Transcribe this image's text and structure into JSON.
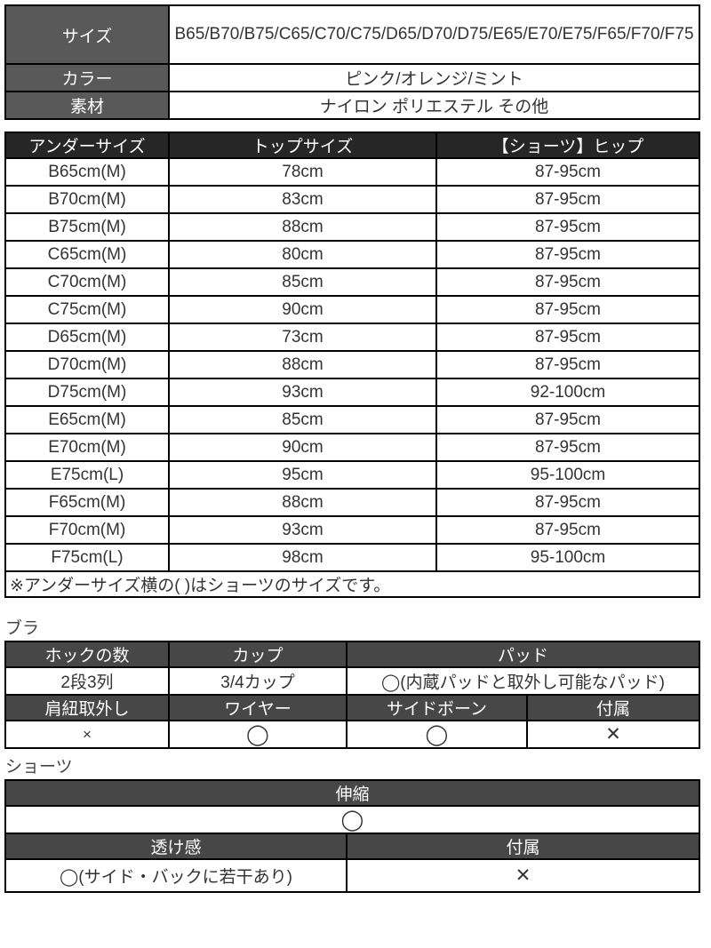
{
  "colors": {
    "header_gray": "#595959",
    "header_black": "#262626",
    "header_mid_gray": "#474747",
    "border": "#000000",
    "text": "#333333"
  },
  "product_info": {
    "rows": [
      {
        "label": "サイズ",
        "value": "B65/B70/B75/C65/C70/C75/D65/D70/D75/E65/E70/E75/F65/F70/F75"
      },
      {
        "label": "カラー",
        "value": "ピンク/オレンジ/ミント"
      },
      {
        "label": "素材",
        "value": "ナイロン ポリエステル その他"
      }
    ]
  },
  "size_table": {
    "headers": [
      "アンダーサイズ",
      "トップサイズ",
      "【ショーツ】ヒップ"
    ],
    "rows": [
      [
        "B65cm(M)",
        "78cm",
        "87-95cm"
      ],
      [
        "B70cm(M)",
        "83cm",
        "87-95cm"
      ],
      [
        "B75cm(M)",
        "88cm",
        "87-95cm"
      ],
      [
        "C65cm(M)",
        "80cm",
        "87-95cm"
      ],
      [
        "C70cm(M)",
        "85cm",
        "87-95cm"
      ],
      [
        "C75cm(M)",
        "90cm",
        "87-95cm"
      ],
      [
        "D65cm(M)",
        "73cm",
        "87-95cm"
      ],
      [
        "D70cm(M)",
        "88cm",
        "87-95cm"
      ],
      [
        "D75cm(M)",
        "93cm",
        "92-100cm"
      ],
      [
        "E65cm(M)",
        "85cm",
        "87-95cm"
      ],
      [
        "E70cm(M)",
        "90cm",
        "87-95cm"
      ],
      [
        "E75cm(L)",
        "95cm",
        "95-100cm"
      ],
      [
        "F65cm(M)",
        "88cm",
        "87-95cm"
      ],
      [
        "F70cm(M)",
        "93cm",
        "87-95cm"
      ],
      [
        "F75cm(L)",
        "98cm",
        "95-100cm"
      ]
    ],
    "note": "※アンダーサイズ横の( )はショーツのサイズです。"
  },
  "bra": {
    "label": "ブラ",
    "row1_headers": [
      "ホックの数",
      "カップ",
      "パッド"
    ],
    "row1_values": [
      "2段3列",
      "3/4カップ",
      "◯(内蔵パッドと取外し可能なパッド)"
    ],
    "row2_headers": [
      "肩紐取外し",
      "ワイヤー",
      "サイドボーン",
      "付属"
    ],
    "row2_values": [
      "×",
      "◯",
      "◯",
      "✕"
    ]
  },
  "shorts": {
    "label": "ショーツ",
    "stretch_header": "伸縮",
    "stretch_value": "◯",
    "row_headers": [
      "透け感",
      "付属"
    ],
    "row_values": [
      "◯(サイド・バックに若干あり)",
      "✕"
    ]
  }
}
